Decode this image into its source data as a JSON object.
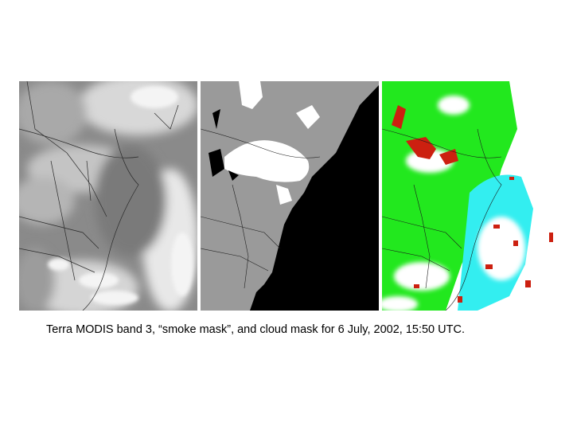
{
  "caption": "Terra MODIS band 3, “smoke mask”, and cloud mask for 6 July, 2002, 15:50 UTC.",
  "panels": [
    {
      "id": "modis-band-3",
      "style": "grayscale-satellite"
    },
    {
      "id": "smoke-mask",
      "style": "gray-black-white-mask"
    },
    {
      "id": "cloud-mask",
      "style": "green-cyan-red-white-mask"
    }
  ],
  "colors": {
    "mask_land_gray": "#9a9a9a",
    "mask_ocean_black": "#000000",
    "mask_smoke_white": "#ffffff",
    "cloud_clear_land_green": "#22e81e",
    "cloud_clear_water_cyan": "#33eef0",
    "cloud_probably_red": "#cc2010",
    "cloud_confident_white": "#ffffff"
  }
}
